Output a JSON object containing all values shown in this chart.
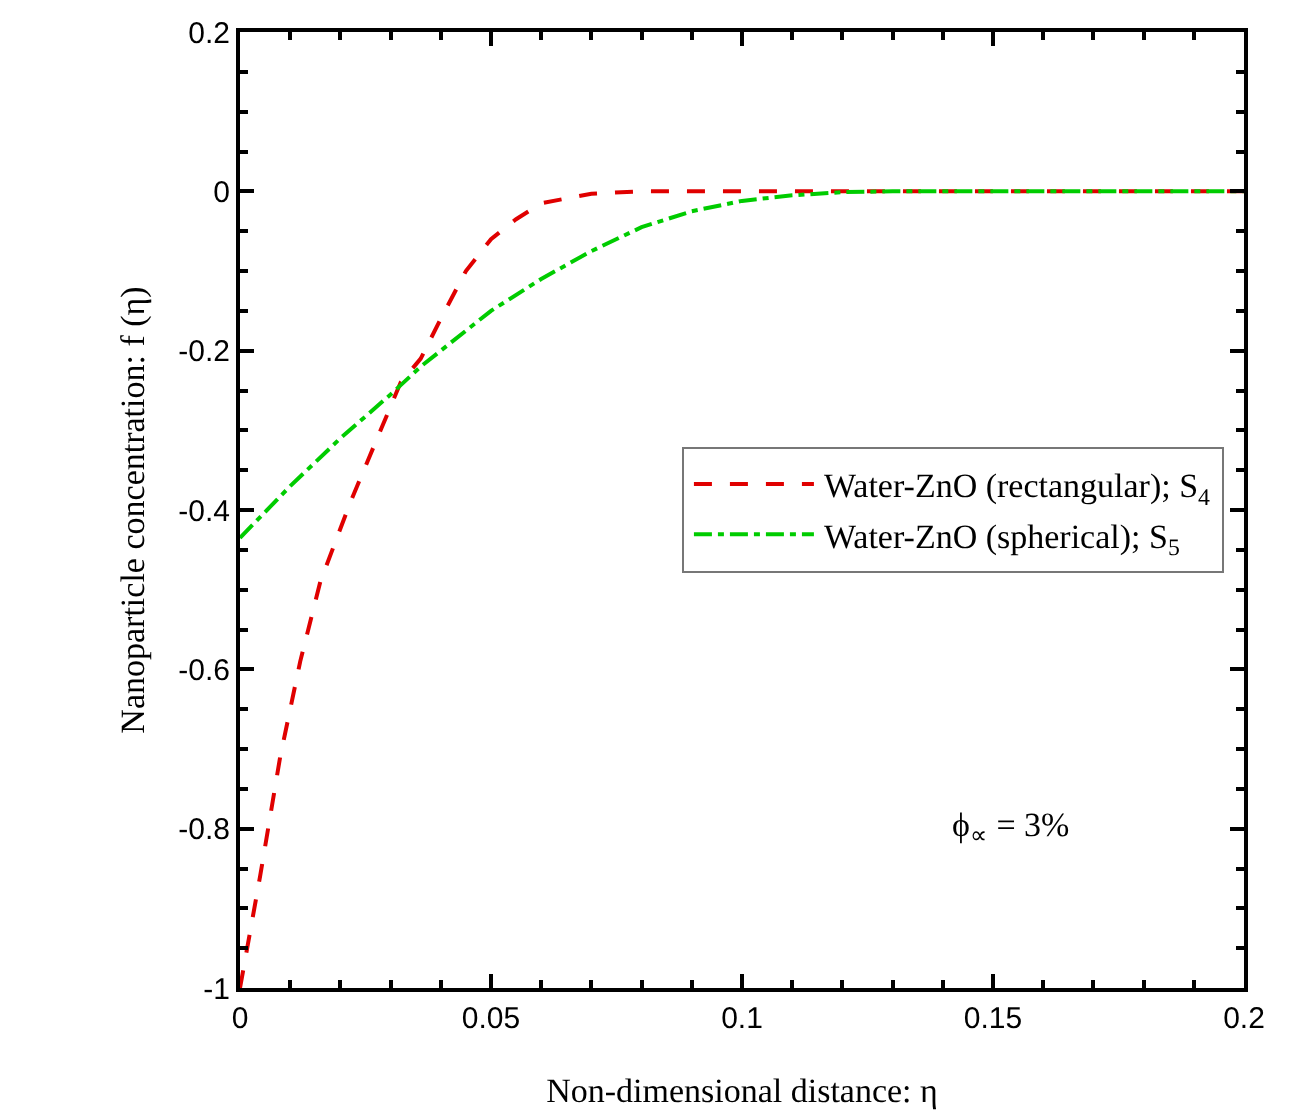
{
  "chart_data": {
    "type": "line",
    "xlabel": "Non-dimensional distance: η",
    "ylabel": "Nanoparticle concentration: f (η)",
    "xlim": [
      0,
      0.2
    ],
    "xticks": [
      0,
      0.05,
      0.1,
      0.15,
      0.2
    ],
    "ylim": [
      -1,
      0.2
    ],
    "yticks": [
      -1,
      -0.8,
      -0.6,
      -0.4,
      -0.2,
      0,
      0.2
    ],
    "grid": false,
    "legend": "right",
    "marker": "none",
    "annotations": [
      "ϕ$_{∝}$ = 3%"
    ],
    "series": [
      {
        "name": "Water-ZnO (rectangular); S$_{4}$",
        "color": "#e00000",
        "line_style": "dashed",
        "x": [
          0,
          0.004,
          0.008,
          0.012,
          0.016,
          0.022,
          0.028,
          0.032,
          0.036,
          0.04,
          0.045,
          0.05,
          0.055,
          0.06,
          0.07,
          0.08,
          0.1,
          0.15,
          0.2
        ],
        "values": [
          -1,
          -0.86,
          -0.71,
          -0.59,
          -0.49,
          -0.39,
          -0.3,
          -0.24,
          -0.21,
          -0.16,
          -0.1,
          -0.06,
          -0.035,
          -0.015,
          -0.003,
          0,
          0,
          0,
          0
        ]
      },
      {
        "name": "Water-ZnO (spherical); S$_{5}$",
        "color": "#00cc00",
        "line_style": "dashdot",
        "x": [
          0,
          0.01,
          0.02,
          0.03,
          0.036,
          0.05,
          0.06,
          0.07,
          0.08,
          0.09,
          0.1,
          0.11,
          0.12,
          0.13,
          0.2
        ],
        "values": [
          -0.435,
          -0.37,
          -0.31,
          -0.255,
          -0.22,
          -0.15,
          -0.11,
          -0.075,
          -0.045,
          -0.025,
          -0.012,
          -0.005,
          -0.001,
          0,
          0
        ]
      }
    ]
  }
}
